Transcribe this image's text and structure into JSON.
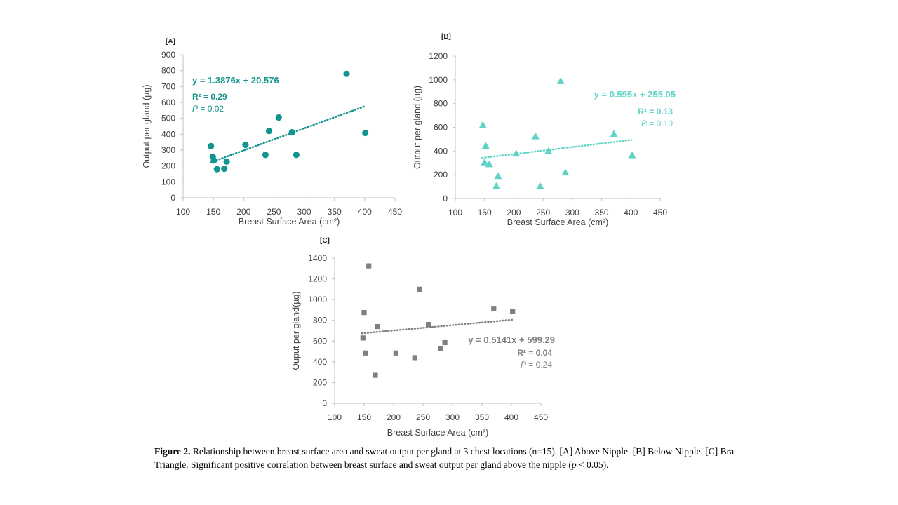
{
  "chart_data": [
    {
      "type": "scatter",
      "panel_label": "[A]",
      "xlabel": "Breast Surface Area (cm²)",
      "ylabel": "Output per gland (µg)",
      "xlim": [
        100,
        450
      ],
      "ylim": [
        0,
        900
      ],
      "xticks": [
        100,
        150,
        200,
        250,
        300,
        350,
        400,
        450
      ],
      "yticks": [
        0,
        100,
        200,
        300,
        400,
        500,
        600,
        700,
        800,
        900
      ],
      "marker": "circle",
      "color": "#13948f",
      "grid": false,
      "points": [
        {
          "x": 146,
          "y": 325
        },
        {
          "x": 149,
          "y": 258
        },
        {
          "x": 151,
          "y": 235
        },
        {
          "x": 156,
          "y": 180
        },
        {
          "x": 168,
          "y": 183
        },
        {
          "x": 172,
          "y": 228
        },
        {
          "x": 203,
          "y": 333
        },
        {
          "x": 236,
          "y": 270
        },
        {
          "x": 242,
          "y": 420
        },
        {
          "x": 258,
          "y": 505
        },
        {
          "x": 280,
          "y": 412
        },
        {
          "x": 287,
          "y": 270
        },
        {
          "x": 370,
          "y": 780
        },
        {
          "x": 401,
          "y": 408
        }
      ],
      "trendline": {
        "slope": 1.3876,
        "intercept": 20.576,
        "x_from": 146,
        "x_to": 401
      },
      "equation": "y = 1.3876x + 20.576",
      "r2_label": "R² = ",
      "r2_value": "0.29",
      "p_label": "P",
      "p_value": " = 0.02"
    },
    {
      "type": "scatter",
      "panel_label": "[B]",
      "xlabel": "Breast Surface Area (cm²)",
      "ylabel": "Output per gland (µg)",
      "xlim": [
        100,
        450
      ],
      "ylim": [
        0,
        1200
      ],
      "xticks": [
        100,
        150,
        200,
        250,
        300,
        350,
        400,
        450
      ],
      "yticks": [
        0,
        200,
        400,
        600,
        800,
        1000,
        1200
      ],
      "marker": "triangle",
      "color": "#5fd4c6",
      "grid": false,
      "points": [
        {
          "x": 147,
          "y": 620
        },
        {
          "x": 150,
          "y": 305
        },
        {
          "x": 152,
          "y": 445
        },
        {
          "x": 158,
          "y": 290
        },
        {
          "x": 170,
          "y": 105
        },
        {
          "x": 173,
          "y": 190
        },
        {
          "x": 204,
          "y": 380
        },
        {
          "x": 237,
          "y": 525
        },
        {
          "x": 245,
          "y": 105
        },
        {
          "x": 259,
          "y": 400
        },
        {
          "x": 280,
          "y": 990
        },
        {
          "x": 288,
          "y": 220
        },
        {
          "x": 371,
          "y": 545
        },
        {
          "x": 402,
          "y": 365
        }
      ],
      "trendline": {
        "slope": 0.595,
        "intercept": 255.05,
        "x_from": 146,
        "x_to": 401
      },
      "equation": "y = 0.595x + 255.05",
      "r2_label": "R² = ",
      "r2_value": "0.13",
      "p_label": "P",
      "p_value": " = 0.10"
    },
    {
      "type": "scatter",
      "panel_label": "[C]",
      "xlabel": "Breast Surface Area (cm²)",
      "ylabel": "Ouput per gland(µg)",
      "xlim": [
        100,
        450
      ],
      "ylim": [
        0,
        1400
      ],
      "xticks": [
        100,
        150,
        200,
        250,
        300,
        350,
        400,
        450
      ],
      "yticks": [
        0,
        200,
        400,
        600,
        800,
        1000,
        1200,
        1400
      ],
      "marker": "square",
      "color": "#7f7f7f",
      "grid": false,
      "points": [
        {
          "x": 148,
          "y": 630
        },
        {
          "x": 150,
          "y": 875
        },
        {
          "x": 152,
          "y": 485
        },
        {
          "x": 158,
          "y": 1325
        },
        {
          "x": 169,
          "y": 270
        },
        {
          "x": 173,
          "y": 740
        },
        {
          "x": 204,
          "y": 485
        },
        {
          "x": 236,
          "y": 440
        },
        {
          "x": 244,
          "y": 1100
        },
        {
          "x": 259,
          "y": 760
        },
        {
          "x": 280,
          "y": 530
        },
        {
          "x": 287,
          "y": 585
        },
        {
          "x": 370,
          "y": 915
        },
        {
          "x": 402,
          "y": 885
        }
      ],
      "trendline": {
        "slope": 0.5141,
        "intercept": 599.29,
        "x_from": 146,
        "x_to": 401
      },
      "equation": "y = 0.5141x + 599.29",
      "r2_label": "R² = ",
      "r2_value": "0.04",
      "p_label": "P",
      "p_value": " = 0.24"
    }
  ],
  "caption": {
    "figure_label": "Figure 2.",
    "text_before_p": " Relationship between breast surface area and sweat output per gland at 3 chest locations (n=15). [A] Above Nipple. [B] Below Nipple. [C] Bra Triangle. Significant positive correlation between breast surface and sweat output per gland above the nipple (",
    "p_symbol": "p",
    "text_after_p": " < 0.05)."
  }
}
